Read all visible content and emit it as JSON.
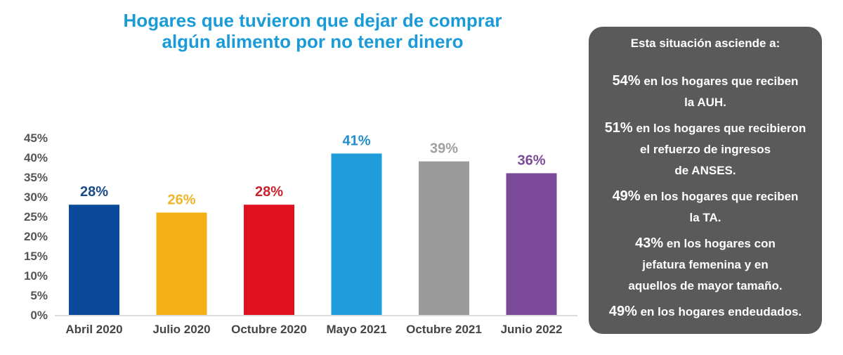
{
  "chart_data": {
    "type": "bar",
    "title": "Hogares que tuvieron que dejar de comprar\nalgún alimento por no tener dinero",
    "title_lines": [
      "Hogares que tuvieron que dejar de comprar",
      "algún alimento por no tener dinero"
    ],
    "categories": [
      "Abril 2020",
      "Julio 2020",
      "Octubre 2020",
      "Mayo 2021",
      "Octubre 2021",
      "Junio 2022"
    ],
    "values": [
      28,
      26,
      28,
      41,
      39,
      36
    ],
    "data_labels": [
      "28%",
      "26%",
      "28%",
      "41%",
      "39%",
      "36%"
    ],
    "colors": [
      "#0b4a9a",
      "#f5b015",
      "#e2101c",
      "#1f9ddb",
      "#9b9b9b",
      "#7b4a98"
    ],
    "label_colors": [
      "#1a4a8a",
      "#f0b428",
      "#c8232c",
      "#1f8fcf",
      "#a0a0a0",
      "#7b4a98"
    ],
    "yticks": [
      "0%",
      "5%",
      "10%",
      "15%",
      "20%",
      "25%",
      "30%",
      "35%",
      "40%",
      "45%"
    ],
    "ylim": [
      0,
      45
    ],
    "xlabel": "",
    "ylabel": "",
    "grid": false,
    "title_color": "#1a9bd7"
  },
  "panel": {
    "header": "Esta situación asciende a:",
    "items": [
      {
        "pct": "54%",
        "text": " en los hogares que reciben\nla AUH."
      },
      {
        "pct": "51%",
        "text": " en los hogares que recibieron\nel refuerzo de ingresos\nde ANSES."
      },
      {
        "pct": "49%",
        "text": " en los hogares que reciben\nla TA."
      },
      {
        "pct": "43%",
        "text": " en los hogares con\njefatura femenina y en\naquellos de mayor tamaño."
      },
      {
        "pct": "49%",
        "text": " en los hogares endeudados."
      }
    ],
    "background": "#5a5a5a"
  }
}
